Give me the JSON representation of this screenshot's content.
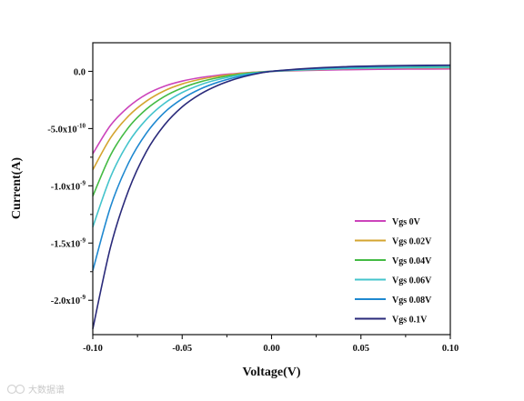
{
  "chart_data": {
    "type": "line",
    "xlabel": "Voltage(V)",
    "ylabel": "Current(A)",
    "xlim": [
      -0.1,
      0.1
    ],
    "ylim": [
      -2.3e-09,
      2.5e-10
    ],
    "x_ticks": [
      {
        "value": -0.1,
        "label": "-0.10"
      },
      {
        "value": -0.05,
        "label": "-0.05"
      },
      {
        "value": 0.0,
        "label": "0.00"
      },
      {
        "value": 0.05,
        "label": "0.05"
      },
      {
        "value": 0.1,
        "label": "0.10"
      }
    ],
    "y_ticks": [
      {
        "value": 0.0,
        "mantissa": "0.0",
        "exp": ""
      },
      {
        "value": -5e-10,
        "mantissa": "-5.0x10",
        "exp": "-10"
      },
      {
        "value": -1e-09,
        "mantissa": "-1.0x10",
        "exp": "-9"
      },
      {
        "value": -1.5e-09,
        "mantissa": "-1.5x10",
        "exp": "-9"
      },
      {
        "value": -2e-09,
        "mantissa": "-2.0x10",
        "exp": "-9"
      }
    ],
    "grid": false,
    "legend_position": "bottom-right",
    "x": [
      -0.1,
      -0.09,
      -0.08,
      -0.07,
      -0.06,
      -0.05,
      -0.04,
      -0.03,
      -0.02,
      -0.01,
      0.0,
      0.02,
      0.04,
      0.06,
      0.08,
      0.1
    ],
    "series": [
      {
        "name": "Vgs 0V",
        "color": "#cc44bb",
        "values": [
          -7.2e-10,
          -4.7e-10,
          -3.1e-10,
          -2e-10,
          -1.3e-10,
          -8.5e-11,
          -5.5e-11,
          -3.4e-11,
          -1.9e-11,
          -8e-12,
          0,
          8e-12,
          1.4e-11,
          1.8e-11,
          2e-11,
          2.1e-11
        ]
      },
      {
        "name": "Vgs 0.02V",
        "color": "#d4a530",
        "values": [
          -8.6e-10,
          -5.8e-10,
          -3.9e-10,
          -2.6e-10,
          -1.7e-10,
          -1.1e-10,
          -7e-11,
          -4.3e-11,
          -2.3e-11,
          -9e-12,
          0,
          1.2e-11,
          2.2e-11,
          2.8e-11,
          3e-11,
          3.1e-11
        ]
      },
      {
        "name": "Vgs 0.04V",
        "color": "#44bb44",
        "values": [
          -1.09e-09,
          -7.3e-10,
          -4.9e-10,
          -3.3e-10,
          -2.2e-10,
          -1.45e-10,
          -9.2e-11,
          -5.6e-11,
          -3e-11,
          -1.2e-11,
          0,
          1.6e-11,
          2.7e-11,
          3.4e-11,
          3.7e-11,
          3.9e-11
        ]
      },
      {
        "name": "Vgs 0.06V",
        "color": "#44c4cc",
        "values": [
          -1.36e-09,
          -9.2e-10,
          -6.2e-10,
          -4.2e-10,
          -2.8e-10,
          -1.85e-10,
          -1.18e-10,
          -7.2e-11,
          -3.9e-11,
          -1.6e-11,
          0,
          1.4e-11,
          2.4e-11,
          3e-11,
          3.3e-11,
          3.5e-11
        ]
      },
      {
        "name": "Vgs 0.08V",
        "color": "#1e88d0",
        "values": [
          -1.74e-09,
          -1.18e-09,
          -8e-10,
          -5.4e-10,
          -3.6e-10,
          -2.4e-10,
          -1.55e-10,
          -9.5e-11,
          -5.2e-11,
          -2.1e-11,
          0,
          2.2e-11,
          3.6e-11,
          4.4e-11,
          4.9e-11,
          5.2e-11
        ]
      },
      {
        "name": "Vgs 0.1V",
        "color": "#2a2a7a",
        "values": [
          -2.25e-09,
          -1.53e-09,
          -1.04e-09,
          -7e-10,
          -4.7e-10,
          -3.1e-10,
          -2e-10,
          -1.22e-10,
          -6.6e-11,
          -2.6e-11,
          0,
          2.5e-11,
          4e-11,
          4.8e-11,
          5.2e-11,
          5.4e-11
        ]
      }
    ]
  },
  "watermark": {
    "text": "大数据谱"
  }
}
